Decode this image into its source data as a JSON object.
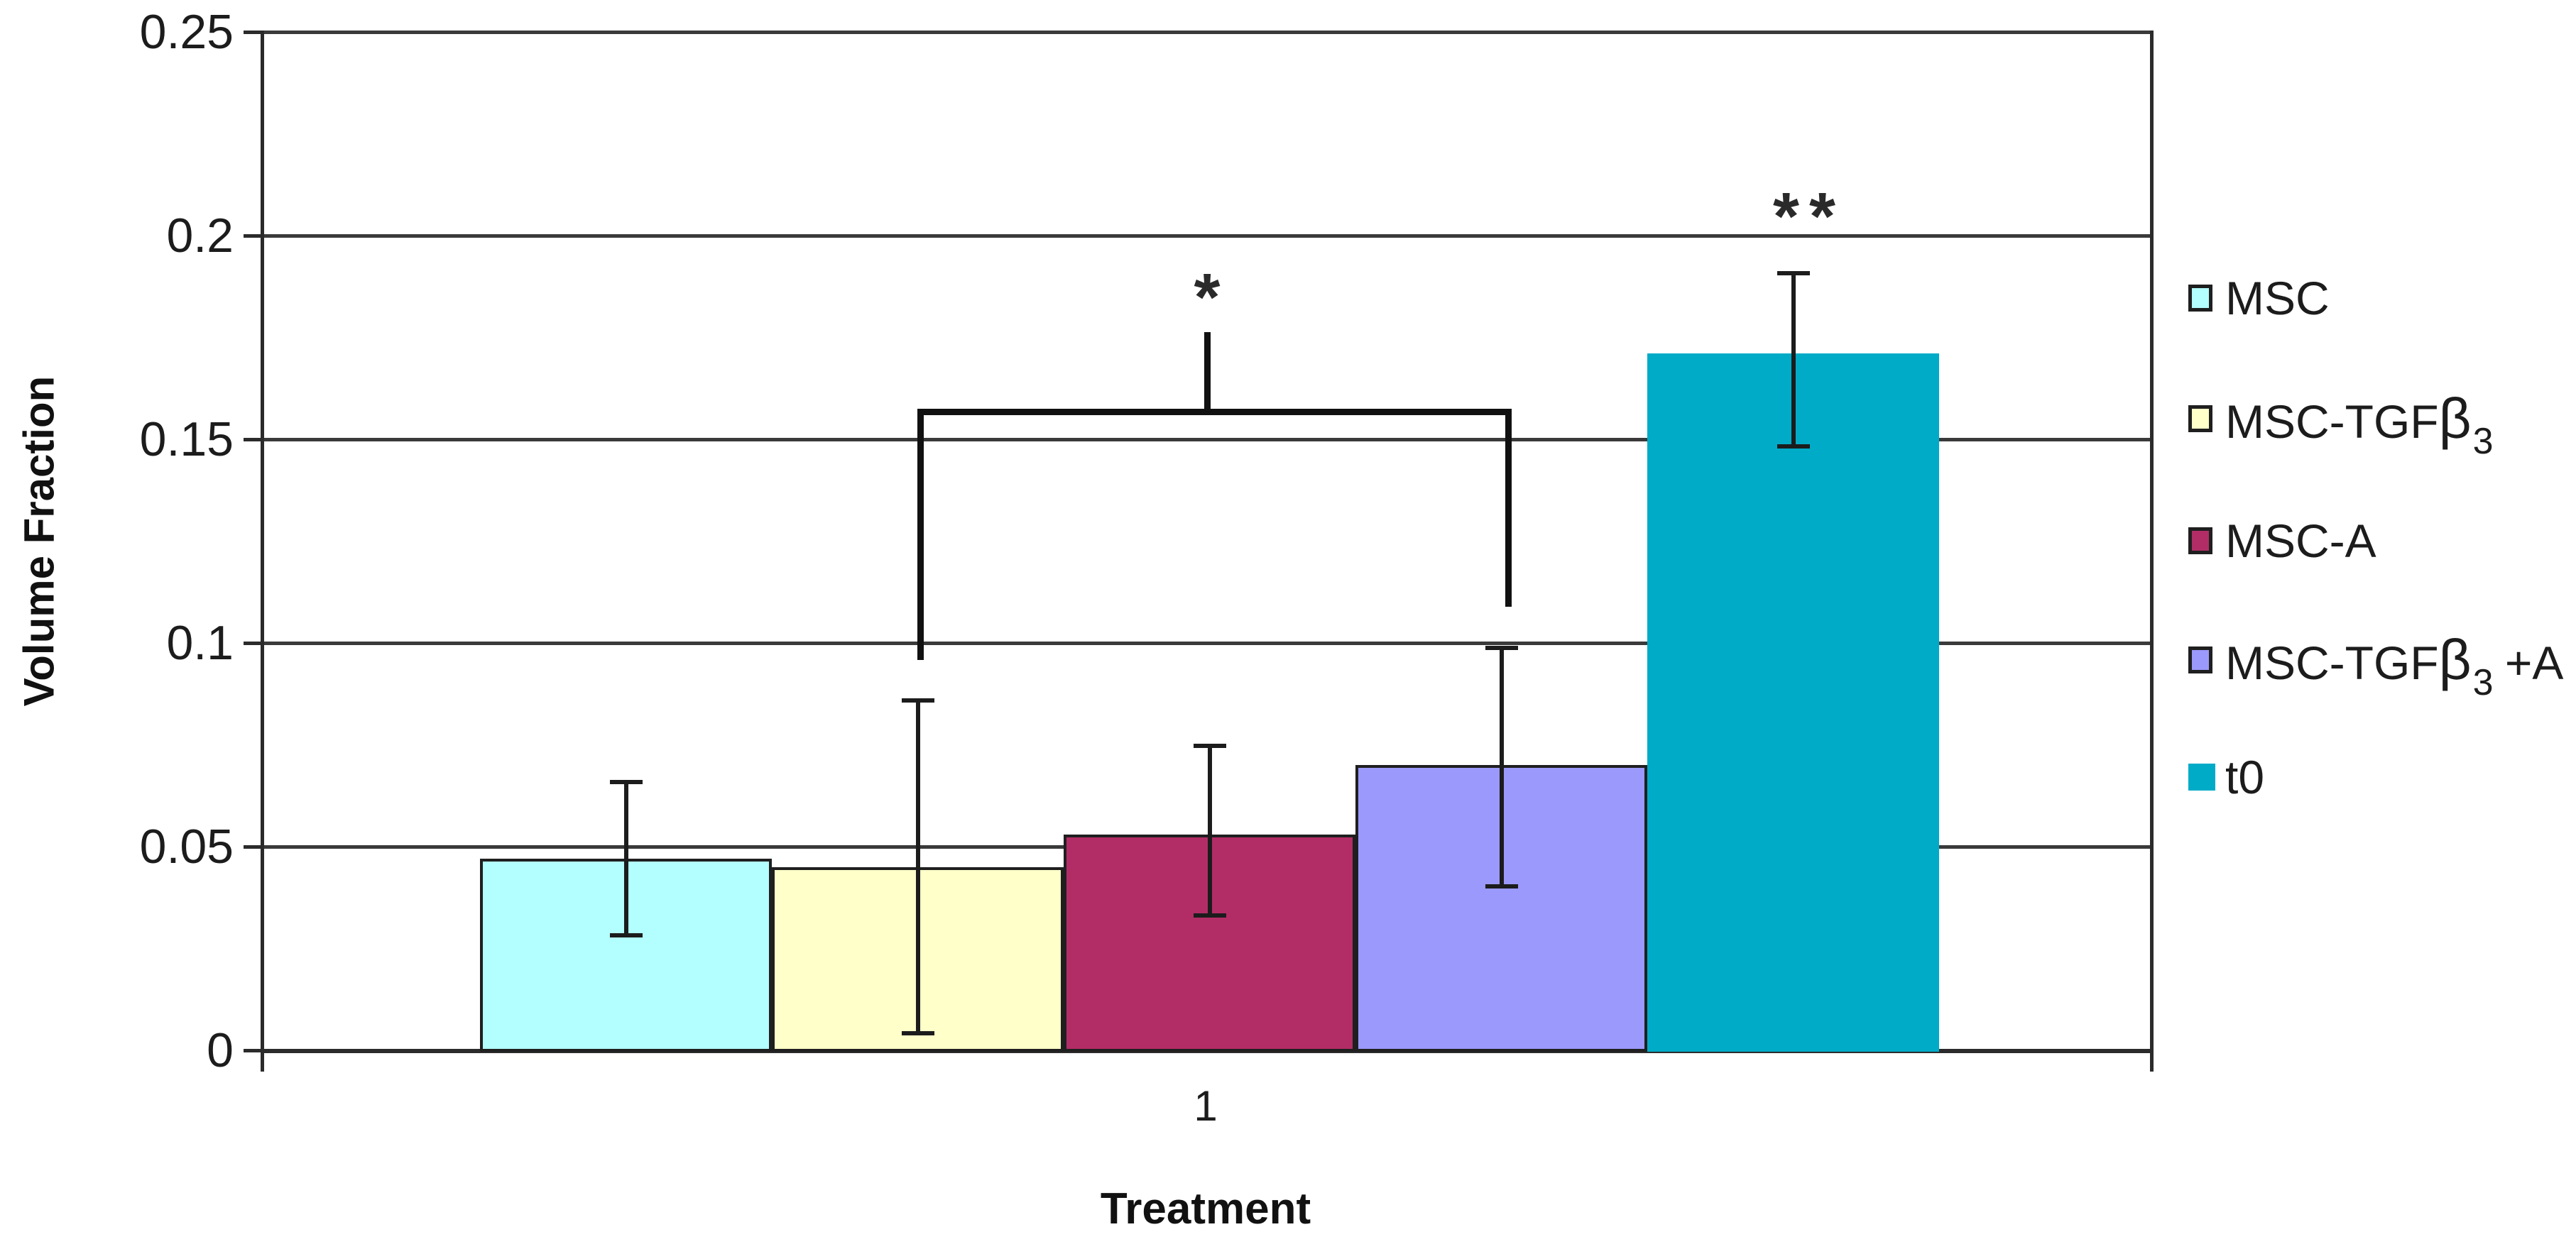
{
  "figure": {
    "background": "#ffffff",
    "text_color": "#1a1a1a"
  },
  "chart_data": {
    "type": "bar",
    "title": "",
    "xlabel": "Treatment",
    "ylabel": "Volume Fraction",
    "categories": [
      "1"
    ],
    "ylim": [
      0,
      0.25
    ],
    "yticks": [
      0,
      0.05,
      0.1,
      0.15,
      0.2,
      0.25
    ],
    "ytick_labels": [
      "0",
      "0.05",
      "0.1",
      "0.15",
      "0.2",
      "0.25"
    ],
    "grid": true,
    "legend_position": "right",
    "series": [
      {
        "name": "MSC",
        "label_parts": [
          {
            "t": "MSC"
          }
        ],
        "value": 0.047,
        "err_top": 0.066,
        "err_bottom": 0.028,
        "color": "#B3FEFE",
        "border": true
      },
      {
        "name": "MSC-TGFb3",
        "label_parts": [
          {
            "t": "MSC-TGF"
          },
          {
            "t": "β",
            "cls": "beta"
          },
          {
            "t": "3",
            "cls": "sub"
          }
        ],
        "value": 0.045,
        "err_top": 0.086,
        "err_bottom": 0.004,
        "color": "#FFFFC9",
        "border": true
      },
      {
        "name": "MSC-A",
        "label_parts": [
          {
            "t": "MSC-A"
          }
        ],
        "value": 0.053,
        "err_top": 0.075,
        "err_bottom": 0.033,
        "color": "#B22D66",
        "border": true
      },
      {
        "name": "MSC-TGFb3+A",
        "label_parts": [
          {
            "t": "MSC-TGF"
          },
          {
            "t": "β",
            "cls": "beta"
          },
          {
            "t": "3",
            "cls": "sub"
          },
          {
            "t": " +A"
          }
        ],
        "value": 0.07,
        "err_top": 0.099,
        "err_bottom": 0.04,
        "color": "#9B99FB",
        "border": true
      },
      {
        "name": "t0",
        "label_parts": [
          {
            "t": "t0"
          }
        ],
        "value": 0.171,
        "err_top": 0.191,
        "err_bottom": 0.148,
        "color": "#00ABC8",
        "border": false
      }
    ],
    "annotations": {
      "single_asterisk": {
        "text": "*",
        "x": 1700,
        "y": 372
      },
      "double_asterisk": {
        "text": "**",
        "x": 2548,
        "y": 258
      },
      "bracket": {
        "x_left": 1292,
        "x_right": 2120,
        "y_top": 576,
        "y_left_end": 930,
        "y_right_end": 855,
        "stem_x": 1700,
        "stem_y_top": 468,
        "stem_y_bottom": 585
      }
    }
  }
}
